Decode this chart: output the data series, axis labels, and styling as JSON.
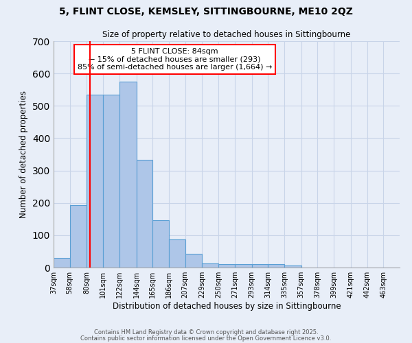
{
  "title1": "5, FLINT CLOSE, KEMSLEY, SITTINGBOURNE, ME10 2QZ",
  "title2": "Size of property relative to detached houses in Sittingbourne",
  "xlabel": "Distribution of detached houses by size in Sittingbourne",
  "ylabel": "Number of detached properties",
  "bin_labels": [
    "37sqm",
    "58sqm",
    "80sqm",
    "101sqm",
    "122sqm",
    "144sqm",
    "165sqm",
    "186sqm",
    "207sqm",
    "229sqm",
    "250sqm",
    "271sqm",
    "293sqm",
    "314sqm",
    "335sqm",
    "357sqm",
    "378sqm",
    "399sqm",
    "421sqm",
    "442sqm",
    "463sqm"
  ],
  "bar_heights": [
    30,
    193,
    535,
    535,
    575,
    333,
    147,
    87,
    42,
    12,
    10,
    10,
    10,
    10,
    6,
    0,
    0,
    0,
    0,
    0,
    0
  ],
  "bar_color": "#aec6e8",
  "bar_edge_color": "#5a9fd4",
  "vline_x": 84,
  "vline_color": "red",
  "annotation_title": "5 FLINT CLOSE: 84sqm",
  "annotation_line1": "← 15% of detached houses are smaller (293)",
  "annotation_line2": "85% of semi-detached houses are larger (1,664) →",
  "annotation_box_color": "white",
  "annotation_box_edge_color": "red",
  "ylim": [
    0,
    700
  ],
  "yticks": [
    0,
    100,
    200,
    300,
    400,
    500,
    600,
    700
  ],
  "grid_color": "#c8d4e8",
  "background_color": "#e8eef8",
  "footer1": "Contains HM Land Registry data © Crown copyright and database right 2025.",
  "footer2": "Contains public sector information licensed under the Open Government Licence v3.0.",
  "bin_edges": [
    37,
    58,
    80,
    101,
    122,
    144,
    165,
    186,
    207,
    229,
    250,
    271,
    293,
    314,
    335,
    357,
    378,
    399,
    421,
    442,
    463,
    484
  ]
}
